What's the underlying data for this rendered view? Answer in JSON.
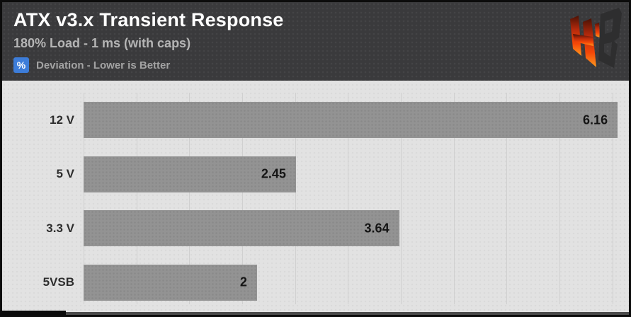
{
  "header": {
    "title": "ATX v3.x Transient Response",
    "subtitle": "180% Load - 1 ms (with caps)",
    "legend": {
      "badge_label": "%",
      "badge_color": "#3d7dd9",
      "text": "Deviation - Lower is Better"
    },
    "logo_name": "hardware-busters-logo"
  },
  "chart_data": {
    "type": "bar",
    "orientation": "horizontal",
    "title": "ATX v3.x Transient Response",
    "subtitle": "180% Load - 1 ms (with caps)",
    "unit": "%",
    "note": "Deviation - Lower is Better",
    "categories": [
      "12 V",
      "5 V",
      "3.3 V",
      "5VSB"
    ],
    "values": [
      6.16,
      2.45,
      3.64,
      2
    ],
    "value_labels": [
      "6.16",
      "2.45",
      "3.64",
      "2"
    ],
    "xlim": [
      0,
      6.2
    ],
    "grid_interval": 0.61,
    "grid": "vertical",
    "legend_position": "none",
    "bar_color": "#939393",
    "plot_background": "#e2e2e2",
    "header_background": "#3a3a3c"
  }
}
